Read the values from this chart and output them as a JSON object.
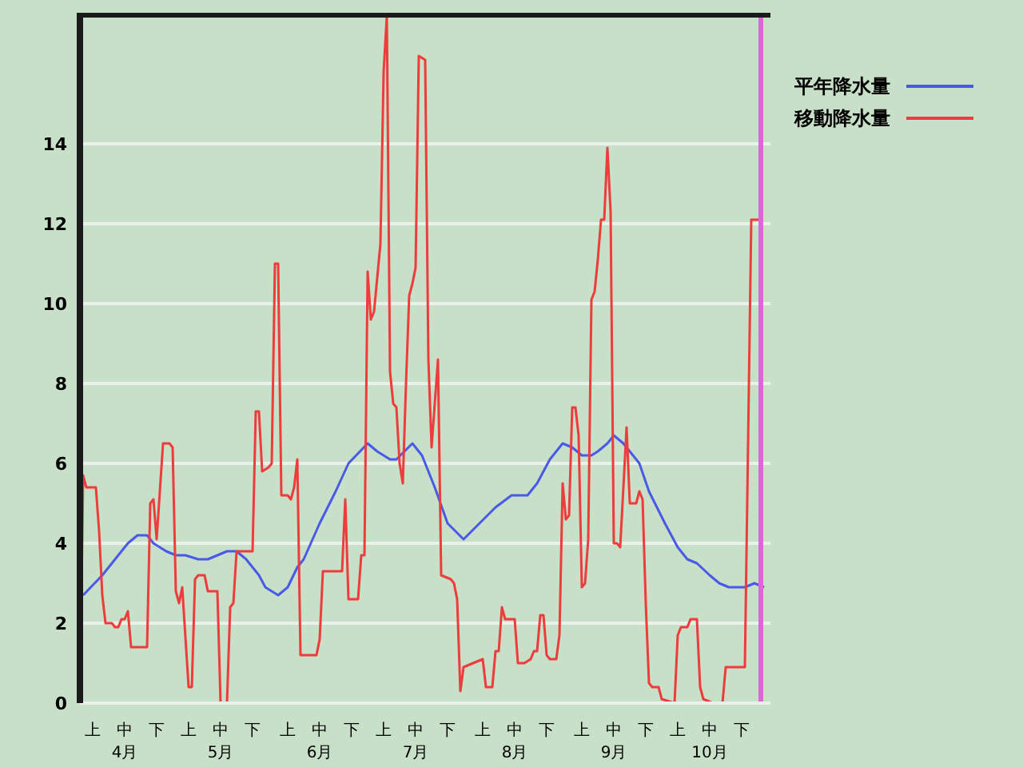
{
  "chart_data": {
    "type": "line",
    "x": [
      "--04-01",
      "--04-02",
      "--04-03",
      "--04-06",
      "--04-07",
      "--04-08",
      "--04-09",
      "--04-11",
      "--04-12",
      "--04-13",
      "--04-14",
      "--04-15",
      "--04-16",
      "--04-17",
      "--04-22",
      "--04-23",
      "--04-24",
      "--04-25",
      "--04-27",
      "--04-29",
      "--04-30",
      "--05-01",
      "--05-02",
      "--05-03",
      "--05-05",
      "--05-06",
      "--05-07",
      "--05-08",
      "--05-10",
      "--05-11",
      "--05-14",
      "--05-15",
      "--05-17",
      "--05-18",
      "--05-19",
      "--05-20",
      "--05-25",
      "--05-26",
      "--05-27",
      "--05-28",
      "--05-30",
      "--05-31",
      "--06-01",
      "--06-02",
      "--06-03",
      "--06-05",
      "--06-06",
      "--06-07",
      "--06-08",
      "--06-09",
      "--06-14",
      "--06-15",
      "--06-16",
      "--06-22",
      "--06-23",
      "--06-24",
      "--06-27",
      "--06-28",
      "--06-29",
      "--06-30",
      "--07-01",
      "--07-02",
      "--07-04",
      "--07-05",
      "--07-06",
      "--07-07",
      "--07-08",
      "--07-09",
      "--07-10",
      "--07-11",
      "--07-12",
      "--07-13",
      "--07-14",
      "--07-15",
      "--07-16",
      "--07-18",
      "--07-19",
      "--07-20",
      "--07-22",
      "--07-23",
      "--07-26",
      "--07-27",
      "--07-28",
      "--07-29",
      "--07-30",
      "--08-05",
      "--08-06",
      "--08-08",
      "--08-09",
      "--08-10",
      "--08-11",
      "--08-12",
      "--08-15",
      "--08-16",
      "--08-18",
      "--08-20",
      "--08-21",
      "--08-22",
      "--08-23",
      "--08-24",
      "--08-25",
      "--08-26",
      "--08-28",
      "--08-29",
      "--08-30",
      "--08-31",
      "--09-01",
      "--09-02",
      "--09-03",
      "--09-04",
      "--09-05",
      "--09-06",
      "--09-07",
      "--09-08",
      "--09-09",
      "--09-10",
      "--09-11",
      "--09-12",
      "--09-13",
      "--09-14",
      "--09-15",
      "--09-16",
      "--09-17",
      "--09-19",
      "--09-20",
      "--09-22",
      "--09-23",
      "--09-24",
      "--09-25",
      "--09-26",
      "--09-27",
      "--09-29",
      "--09-30",
      "--10-04",
      "--10-05",
      "--10-06",
      "--10-08",
      "--10-09",
      "--10-11",
      "--10-12",
      "--10-13",
      "--10-16",
      "--10-19",
      "--10-20",
      "--10-26",
      "--10-28",
      "--10-31"
    ],
    "series": [
      {
        "name": "平年降水量",
        "color": "#4a5ae8",
        "x": [
          "--04-02",
          "--04-08",
          "--04-13",
          "--04-16",
          "--04-19",
          "--04-22",
          "--04-24",
          "--04-28",
          "--05-01",
          "--05-04",
          "--05-08",
          "--05-11",
          "--05-14",
          "--05-17",
          "--05-20",
          "--05-23",
          "--05-27",
          "--05-29",
          "--06-02",
          "--06-05",
          "--06-08",
          "--06-10",
          "--06-15",
          "--06-20",
          "--06-24",
          "--06-30",
          "--07-03",
          "--07-07",
          "--07-09",
          "--07-14",
          "--07-17",
          "--07-21",
          "--07-25",
          "--07-30",
          "--08-04",
          "--08-09",
          "--08-14",
          "--08-19",
          "--08-22",
          "--08-26",
          "--08-30",
          "--09-02",
          "--09-05",
          "--09-08",
          "--09-10",
          "--09-13",
          "--09-15",
          "--09-18",
          "--09-23",
          "--09-26",
          "--10-01",
          "--10-05",
          "--10-08",
          "--10-11",
          "--10-15",
          "--10-18",
          "--10-21",
          "--10-26",
          "--10-29",
          "--11-01"
        ],
        "values": [
          2.7,
          3.2,
          3.7,
          4.0,
          4.2,
          4.2,
          4.0,
          3.8,
          3.7,
          3.7,
          3.6,
          3.6,
          3.7,
          3.8,
          3.8,
          3.6,
          3.2,
          2.9,
          2.7,
          2.9,
          3.4,
          3.6,
          4.5,
          5.3,
          6.0,
          6.5,
          6.3,
          6.1,
          6.1,
          6.5,
          6.2,
          5.4,
          4.5,
          4.1,
          4.5,
          4.9,
          5.2,
          5.2,
          5.5,
          6.1,
          6.5,
          6.4,
          6.2,
          6.2,
          6.3,
          6.5,
          6.7,
          6.5,
          6.0,
          5.3,
          4.5,
          3.9,
          3.6,
          3.5,
          3.2,
          3.0,
          2.9,
          2.9,
          3.0,
          2.9
        ]
      },
      {
        "name": "移動降水量",
        "color": "#ee3b3b",
        "values": [
          0,
          5.7,
          5.4,
          5.4,
          4.3,
          2.7,
          2.0,
          2.0,
          1.9,
          1.9,
          2.1,
          2.1,
          2.3,
          1.4,
          1.4,
          5.0,
          5.1,
          4.1,
          6.5,
          6.5,
          6.4,
          2.8,
          2.5,
          2.9,
          0.4,
          0.4,
          3.1,
          3.2,
          3.2,
          2.8,
          2.8,
          0,
          0,
          2.4,
          2.5,
          3.8,
          3.8,
          7.3,
          7.3,
          5.8,
          5.9,
          6.0,
          11.0,
          11.0,
          5.2,
          5.2,
          5.1,
          5.4,
          6.1,
          1.2,
          1.2,
          1.6,
          3.3,
          3.3,
          5.1,
          2.6,
          2.6,
          3.7,
          3.7,
          10.8,
          9.6,
          9.8,
          11.5,
          15.8,
          17.2,
          8.3,
          7.5,
          7.4,
          6.0,
          5.5,
          8.0,
          10.2,
          10.5,
          10.9,
          16.2,
          16.1,
          8.6,
          6.4,
          8.6,
          3.2,
          3.1,
          3.0,
          2.6,
          0.3,
          0.9,
          1.1,
          0.4,
          0.4,
          1.3,
          1.3,
          2.4,
          2.1,
          2.1,
          1.0,
          1.0,
          1.1,
          1.3,
          1.3,
          2.2,
          2.2,
          1.2,
          1.1,
          1.1,
          1.7,
          5.5,
          4.6,
          4.7,
          7.4,
          7.4,
          6.7,
          2.9,
          3.0,
          4.1,
          10.1,
          10.3,
          11.1,
          12.1,
          12.1,
          13.9,
          12.3,
          4.0,
          4.0,
          3.9,
          6.9,
          5.0,
          5.0,
          5.3,
          5.1,
          2.5,
          0.5,
          0.4,
          0.4,
          0.1,
          0,
          1.7,
          1.9,
          1.9,
          2.1,
          2.1,
          0.4,
          0.1,
          0,
          0,
          0.9,
          0.9,
          12.1,
          12.1
        ]
      }
    ],
    "xlim": [
      "--04-01",
      "--11-03"
    ],
    "xticks": [
      {
        "value": "--04-05",
        "label": "上"
      },
      {
        "value": "--04-15",
        "label": "中\n4月"
      },
      {
        "value": "--04-25",
        "label": "下"
      },
      {
        "value": "--05-05",
        "label": "上"
      },
      {
        "value": "--05-15",
        "label": "中\n5月"
      },
      {
        "value": "--05-25",
        "label": "下"
      },
      {
        "value": "--06-05",
        "label": "上"
      },
      {
        "value": "--06-15",
        "label": "中\n6月"
      },
      {
        "value": "--06-25",
        "label": "下"
      },
      {
        "value": "--07-05",
        "label": "上"
      },
      {
        "value": "--07-15",
        "label": "中\n7月"
      },
      {
        "value": "--07-25",
        "label": "下"
      },
      {
        "value": "--08-05",
        "label": "上"
      },
      {
        "value": "--08-15",
        "label": "中\n8月"
      },
      {
        "value": "--08-25",
        "label": "下"
      },
      {
        "value": "--09-05",
        "label": "上"
      },
      {
        "value": "--09-15",
        "label": "中\n9月"
      },
      {
        "value": "--09-25",
        "label": "下"
      },
      {
        "value": "--10-05",
        "label": "上"
      },
      {
        "value": "--10-15",
        "label": "中\n10月"
      },
      {
        "value": "--10-25",
        "label": "下"
      }
    ],
    "ylim": [
      0,
      17.2
    ],
    "yticks": [
      0,
      2,
      4,
      6,
      8,
      10,
      12,
      14
    ],
    "grid": "y",
    "legend": "top right",
    "marker": "none",
    "line_style": "solid",
    "ref_lines": [
      {
        "axis": "x",
        "value": "--10-31",
        "color": "#dd66dd"
      }
    ]
  }
}
